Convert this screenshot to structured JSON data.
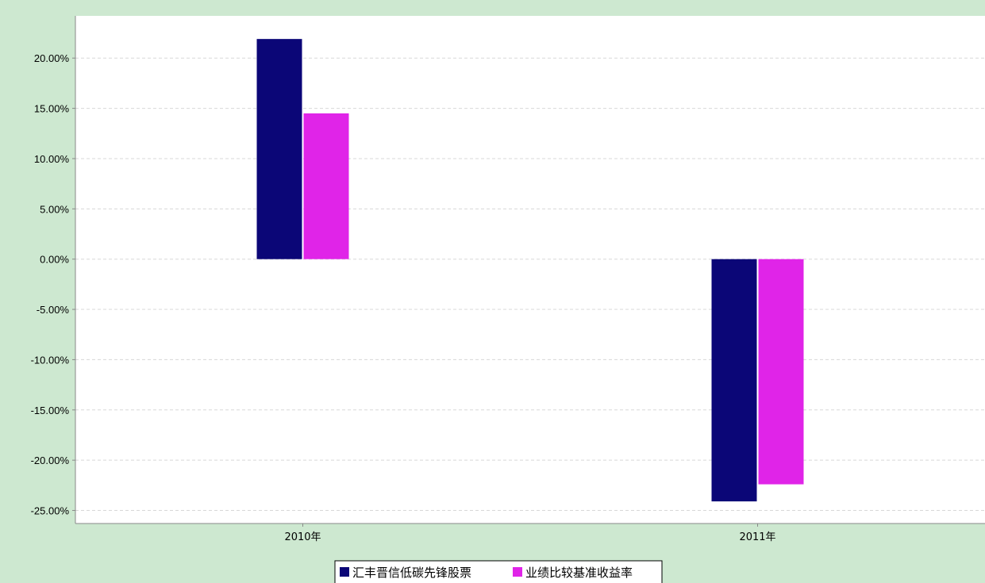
{
  "chart_data": {
    "type": "bar",
    "categories": [
      "2010年",
      "2011年"
    ],
    "series": [
      {
        "name": "汇丰晋信低碳先锋股票",
        "values": [
          21.9,
          -24.1
        ],
        "color": "#0b0677"
      },
      {
        "name": "业绩比较基准收益率",
        "values": [
          14.5,
          -22.4
        ],
        "color": "#e024e8"
      }
    ],
    "yticks": [
      "20.00%",
      "15.00%",
      "10.00%",
      "5.00%",
      "0.00%",
      "-5.00%",
      "-10.00%",
      "-15.00%",
      "-20.00%",
      "-25.00%"
    ],
    "ylim": [
      -26.3,
      24.2
    ],
    "grid": true,
    "legend_position": "bottom-center",
    "title": "",
    "xlabel": "",
    "ylabel": ""
  },
  "colors": {
    "background": "#cde8d0",
    "plot_background": "#ffffff",
    "grid": "#d8d8d8"
  }
}
